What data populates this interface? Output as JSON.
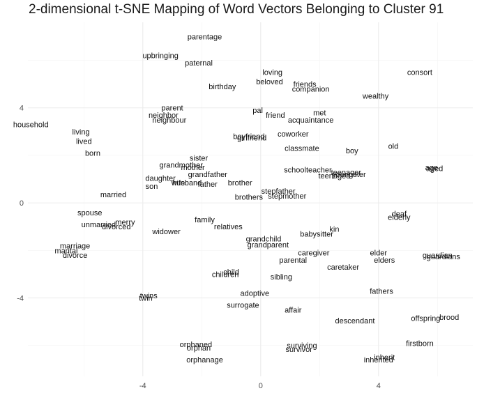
{
  "colors": {
    "background": "#ffffff",
    "grid_major": "#ebebeb",
    "grid_minor": "#f4f4f4",
    "text": "#111111",
    "tick_text": "#4d4d4d"
  },
  "chart_data": {
    "type": "scatter",
    "title": "2-dimensional t-SNE Mapping of Word Vectors Belonging to Cluster 91",
    "xlabel": "",
    "ylabel": "",
    "xlim": [
      -7.9,
      7.2
    ],
    "ylim": [
      -7.3,
      7.6
    ],
    "x_ticks": [
      -4,
      0,
      4
    ],
    "y_ticks": [
      -4,
      0,
      4
    ],
    "grid": true,
    "legend": "none",
    "points": [
      {
        "label": "parentage",
        "x": -1.9,
        "y": 7.0
      },
      {
        "label": "upbringing",
        "x": -3.4,
        "y": 6.2
      },
      {
        "label": "paternal",
        "x": -2.1,
        "y": 5.9
      },
      {
        "label": "loving",
        "x": 0.4,
        "y": 5.5
      },
      {
        "label": "consort",
        "x": 5.4,
        "y": 5.5
      },
      {
        "label": "beloved",
        "x": 0.3,
        "y": 5.1
      },
      {
        "label": "friends",
        "x": 1.5,
        "y": 5.0
      },
      {
        "label": "birthday",
        "x": -1.3,
        "y": 4.9
      },
      {
        "label": "companion",
        "x": 1.7,
        "y": 4.8
      },
      {
        "label": "wealthy",
        "x": 3.9,
        "y": 4.5
      },
      {
        "label": "parent",
        "x": -3.0,
        "y": 4.0
      },
      {
        "label": "pal",
        "x": -0.1,
        "y": 3.9
      },
      {
        "label": "met",
        "x": 2.0,
        "y": 3.8
      },
      {
        "label": "neighbor",
        "x": -3.3,
        "y": 3.7
      },
      {
        "label": "friend",
        "x": 0.5,
        "y": 3.7
      },
      {
        "label": "neighbour",
        "x": -3.1,
        "y": 3.5
      },
      {
        "label": "acquaintance",
        "x": 1.7,
        "y": 3.5
      },
      {
        "label": "household",
        "x": -7.8,
        "y": 3.3
      },
      {
        "label": "living",
        "x": -6.1,
        "y": 3.0
      },
      {
        "label": "coworker",
        "x": 1.1,
        "y": 2.9
      },
      {
        "label": "boyfriend",
        "x": -0.4,
        "y": 2.8
      },
      {
        "label": "girlfriend",
        "x": -0.3,
        "y": 2.75
      },
      {
        "label": "lived",
        "x": -6.0,
        "y": 2.6
      },
      {
        "label": "old",
        "x": 4.5,
        "y": 2.4
      },
      {
        "label": "classmate",
        "x": 1.4,
        "y": 2.3
      },
      {
        "label": "boy",
        "x": 3.1,
        "y": 2.2
      },
      {
        "label": "born",
        "x": -5.7,
        "y": 2.1
      },
      {
        "label": "sister",
        "x": -2.1,
        "y": 1.9
      },
      {
        "label": "grandmother",
        "x": -2.7,
        "y": 1.6
      },
      {
        "label": "mother",
        "x": -2.3,
        "y": 1.5
      },
      {
        "label": "age",
        "x": 5.8,
        "y": 1.5
      },
      {
        "label": "aged",
        "x": 5.9,
        "y": 1.45
      },
      {
        "label": "schoolteacher",
        "x": 1.6,
        "y": 1.4
      },
      {
        "label": "teenager",
        "x": 2.9,
        "y": 1.3
      },
      {
        "label": "youngster",
        "x": 3.0,
        "y": 1.2
      },
      {
        "label": "teenaged",
        "x": 2.5,
        "y": 1.15
      },
      {
        "label": "grandfather",
        "x": -1.8,
        "y": 1.2
      },
      {
        "label": "daughter",
        "x": -3.4,
        "y": 1.05
      },
      {
        "label": "wife",
        "x": -2.8,
        "y": 0.85
      },
      {
        "label": "husband",
        "x": -2.5,
        "y": 0.85
      },
      {
        "label": "father",
        "x": -1.8,
        "y": 0.8
      },
      {
        "label": "brother",
        "x": -0.7,
        "y": 0.85
      },
      {
        "label": "son",
        "x": -3.7,
        "y": 0.7
      },
      {
        "label": "stepfather",
        "x": 0.6,
        "y": 0.5
      },
      {
        "label": "married",
        "x": -5.0,
        "y": 0.35
      },
      {
        "label": "stepmother",
        "x": 0.9,
        "y": 0.3
      },
      {
        "label": "brothers",
        "x": -0.4,
        "y": 0.25
      },
      {
        "label": "spouse",
        "x": -5.8,
        "y": -0.4
      },
      {
        "label": "deaf",
        "x": 4.7,
        "y": -0.45
      },
      {
        "label": "elderly",
        "x": 4.7,
        "y": -0.6
      },
      {
        "label": "family",
        "x": -1.9,
        "y": -0.7
      },
      {
        "label": "merry",
        "x": -4.6,
        "y": -0.8
      },
      {
        "label": "unmarried",
        "x": -5.5,
        "y": -0.9
      },
      {
        "label": "divorced",
        "x": -4.9,
        "y": -1.0
      },
      {
        "label": "relatives",
        "x": -1.1,
        "y": -1.0
      },
      {
        "label": "widower",
        "x": -3.2,
        "y": -1.2
      },
      {
        "label": "kin",
        "x": 2.5,
        "y": -1.1
      },
      {
        "label": "babysitter",
        "x": 1.9,
        "y": -1.3
      },
      {
        "label": "grandchild",
        "x": 0.1,
        "y": -1.5
      },
      {
        "label": "grandparent",
        "x": 0.25,
        "y": -1.75
      },
      {
        "label": "marriage",
        "x": -6.3,
        "y": -1.8
      },
      {
        "label": "marital",
        "x": -6.6,
        "y": -2.0
      },
      {
        "label": "caregiver",
        "x": 1.8,
        "y": -2.1
      },
      {
        "label": "elder",
        "x": 4.0,
        "y": -2.1
      },
      {
        "label": "divorce",
        "x": -6.3,
        "y": -2.2
      },
      {
        "label": "guardian",
        "x": 6.0,
        "y": -2.2
      },
      {
        "label": "guardians",
        "x": 6.2,
        "y": -2.25
      },
      {
        "label": "parental",
        "x": 1.1,
        "y": -2.4
      },
      {
        "label": "elders",
        "x": 4.2,
        "y": -2.4
      },
      {
        "label": "caretaker",
        "x": 2.8,
        "y": -2.7
      },
      {
        "label": "child",
        "x": -1.0,
        "y": -2.9
      },
      {
        "label": "children",
        "x": -1.2,
        "y": -3.0
      },
      {
        "label": "sibling",
        "x": 0.7,
        "y": -3.1
      },
      {
        "label": "fathers",
        "x": 4.1,
        "y": -3.7
      },
      {
        "label": "adoptive",
        "x": -0.2,
        "y": -3.8
      },
      {
        "label": "twins",
        "x": -3.8,
        "y": -3.9
      },
      {
        "label": "twin",
        "x": -3.9,
        "y": -4.0
      },
      {
        "label": "surrogate",
        "x": -0.6,
        "y": -4.3
      },
      {
        "label": "affair",
        "x": 1.1,
        "y": -4.5
      },
      {
        "label": "brood",
        "x": 6.4,
        "y": -4.8
      },
      {
        "label": "offspring",
        "x": 5.6,
        "y": -4.85
      },
      {
        "label": "descendant",
        "x": 3.2,
        "y": -4.95
      },
      {
        "label": "firstborn",
        "x": 5.4,
        "y": -5.9
      },
      {
        "label": "orphaned",
        "x": -2.2,
        "y": -5.95
      },
      {
        "label": "surviving",
        "x": 1.4,
        "y": -6.0
      },
      {
        "label": "orphan",
        "x": -2.1,
        "y": -6.1
      },
      {
        "label": "survivor",
        "x": 1.3,
        "y": -6.15
      },
      {
        "label": "inherit",
        "x": 4.2,
        "y": -6.5
      },
      {
        "label": "inherited",
        "x": 4.0,
        "y": -6.6
      },
      {
        "label": "orphanage",
        "x": -1.9,
        "y": -6.6
      }
    ]
  }
}
